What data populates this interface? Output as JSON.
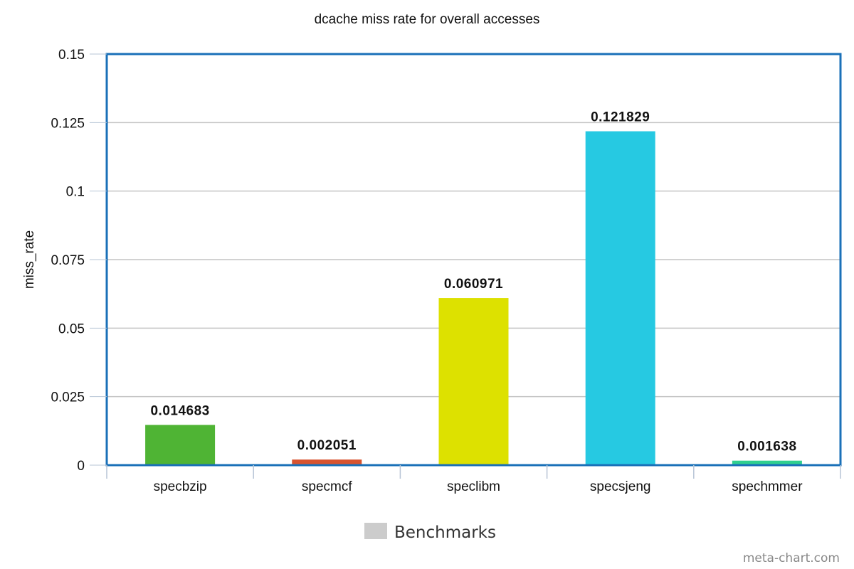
{
  "chart_data": {
    "type": "bar",
    "title": "dcache miss rate for overall accesses",
    "ylabel": "miss_rate",
    "xlabel": "",
    "ylim": [
      0,
      0.15
    ],
    "yticks": [
      "0",
      "0.025",
      "0.05",
      "0.075",
      "0.1",
      "0.125",
      "0.15"
    ],
    "categories": [
      "specbzip",
      "specmcf",
      "speclibm",
      "specsjeng",
      "spechmmer"
    ],
    "values": [
      0.014683,
      0.002051,
      0.060971,
      0.121829,
      0.001638
    ],
    "data_labels": [
      "0.014683",
      "0.002051",
      "0.060971",
      "0.121829",
      "0.001638"
    ],
    "bar_colors": [
      "#4fb434",
      "#d9532e",
      "#dde100",
      "#26c9e2",
      "#2fcf8f"
    ],
    "grid": true,
    "legend": {
      "label": "Benchmarks",
      "position": "bottom-center",
      "swatch_color": "#cccccc"
    },
    "frame_color": "#1a70b8"
  },
  "watermark": "meta-chart.com"
}
